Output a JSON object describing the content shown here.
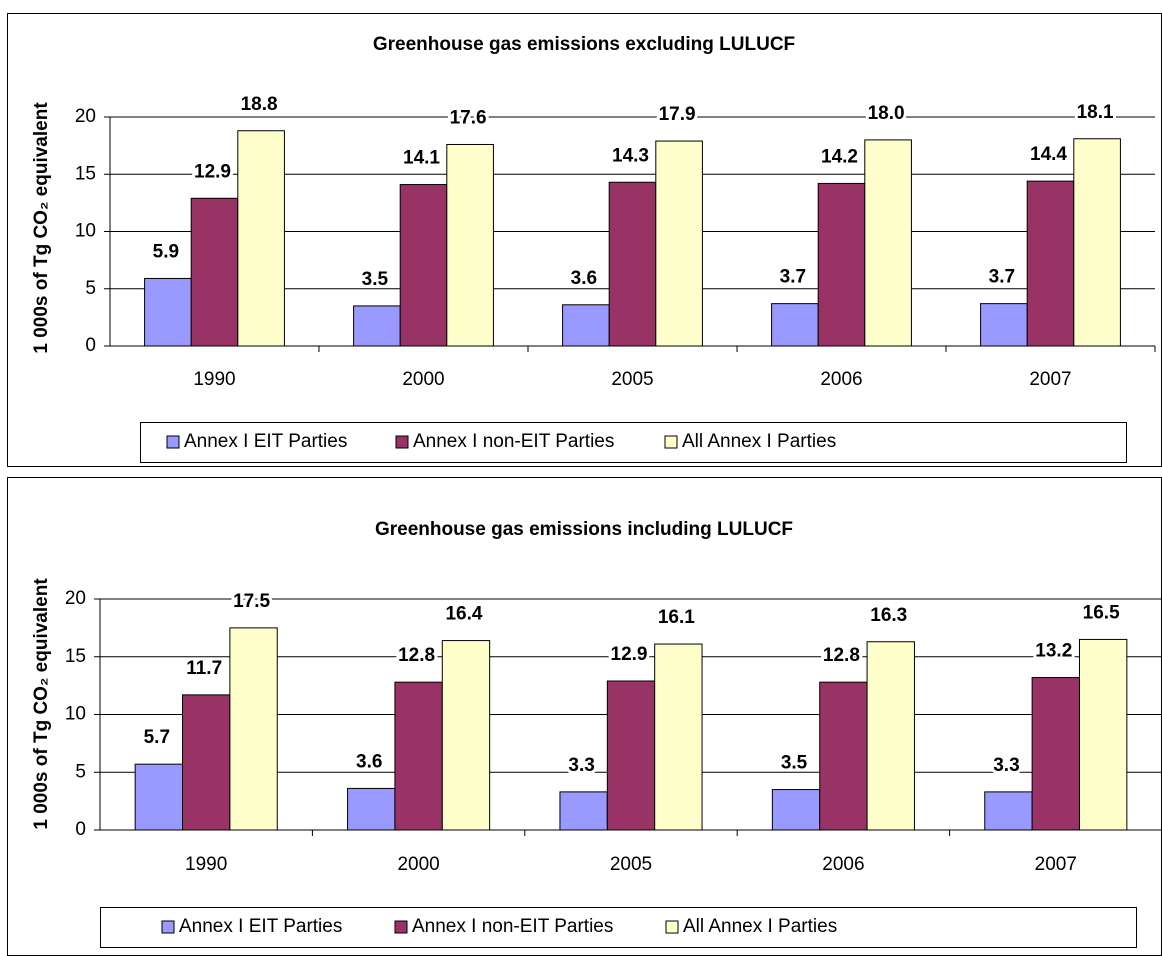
{
  "chart_data": [
    {
      "type": "bar",
      "title": "Greenhouse gas emissions excluding LULUCF",
      "y_label": "1 000s of Tg CO₂ equivalent",
      "categories": [
        "1990",
        "2000",
        "2005",
        "2006",
        "2007"
      ],
      "series": [
        {
          "name": "Annex I EIT Parties",
          "color": "#9999ff",
          "values": [
            5.9,
            3.5,
            3.6,
            3.7,
            3.7
          ],
          "value_labels": [
            "5.9",
            "3.5",
            "3.6",
            "3.7",
            "3.7"
          ]
        },
        {
          "name": "Annex I non-EIT Parties",
          "color": "#993366",
          "values": [
            12.9,
            14.1,
            14.3,
            14.2,
            14.4
          ],
          "value_labels": [
            "12.9",
            "14.1",
            "14.3",
            "14.2",
            "14.4"
          ]
        },
        {
          "name": "All Annex I Parties",
          "color": "#ffffcc",
          "values": [
            18.8,
            17.6,
            17.9,
            18.0,
            18.1
          ],
          "value_labels": [
            "18.8",
            "17.6",
            "17.9",
            "18.0",
            "18.1"
          ]
        }
      ],
      "ylim": [
        0,
        20
      ],
      "yticks": [
        0,
        5,
        10,
        15,
        20
      ],
      "grid": true,
      "legend": "bottom"
    },
    {
      "type": "bar",
      "title": "Greenhouse gas emissions including LULUCF",
      "y_label": "1 000s of Tg CO₂ equivalent",
      "categories": [
        "1990",
        "2000",
        "2005",
        "2006",
        "2007"
      ],
      "series": [
        {
          "name": "Annex I EIT Parties",
          "color": "#9999ff",
          "values": [
            5.7,
            3.6,
            3.3,
            3.5,
            3.3
          ],
          "value_labels": [
            "5.7",
            "3.6",
            "3.3",
            "3.5",
            "3.3"
          ]
        },
        {
          "name": "Annex I non-EIT Parties",
          "color": "#993366",
          "values": [
            11.7,
            12.8,
            12.9,
            12.8,
            13.2
          ],
          "value_labels": [
            "11.7",
            "12.8",
            "12.9",
            "12.8",
            "13.2"
          ]
        },
        {
          "name": "All Annex I Parties",
          "color": "#ffffcc",
          "values": [
            17.5,
            16.4,
            16.1,
            16.3,
            16.5
          ],
          "value_labels": [
            "17.5",
            "16.4",
            "16.1",
            "16.3",
            "16.5"
          ]
        }
      ],
      "ylim": [
        0,
        20
      ],
      "yticks": [
        0,
        5,
        10,
        15,
        20
      ],
      "grid": true,
      "legend": "bottom"
    }
  ]
}
